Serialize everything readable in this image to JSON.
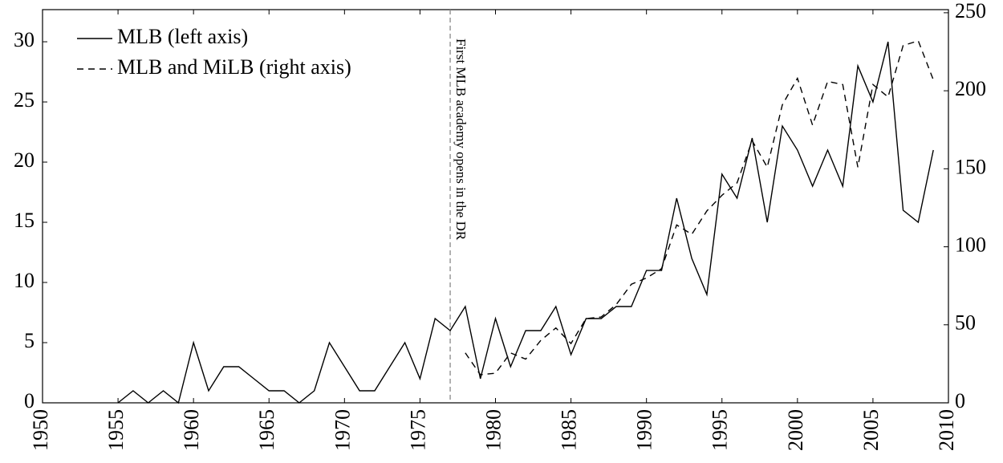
{
  "chart_data": {
    "type": "line",
    "x": [
      1955,
      1956,
      1957,
      1958,
      1959,
      1960,
      1961,
      1962,
      1963,
      1964,
      1965,
      1966,
      1967,
      1968,
      1969,
      1970,
      1971,
      1972,
      1973,
      1974,
      1975,
      1976,
      1977,
      1978,
      1979,
      1980,
      1981,
      1982,
      1983,
      1984,
      1985,
      1986,
      1987,
      1988,
      1989,
      1990,
      1991,
      1992,
      1993,
      1994,
      1995,
      1996,
      1997,
      1998,
      1999,
      2000,
      2001,
      2002,
      2003,
      2004,
      2005,
      2006,
      2007,
      2008,
      2009
    ],
    "series": [
      {
        "name": "MLB (left axis)",
        "color": "#000000",
        "dash": "none",
        "values": [
          0,
          1,
          0,
          1,
          0,
          5,
          1,
          3,
          3,
          2,
          1,
          1,
          0,
          1,
          5,
          3,
          1,
          1,
          3,
          5,
          2,
          7,
          6,
          8,
          2,
          7,
          3,
          6,
          6,
          8,
          4,
          7,
          7,
          8,
          8,
          11,
          11,
          17,
          12,
          9,
          19,
          17,
          22,
          15,
          23,
          21,
          18,
          21,
          18,
          28,
          25,
          30,
          16,
          15,
          21
        ]
      },
      {
        "name": "MLB and MiLB (right axis)",
        "color": "#000000",
        "dash": "8 6",
        "axis": "y2",
        "values": [
          null,
          null,
          null,
          null,
          null,
          null,
          null,
          null,
          null,
          null,
          null,
          null,
          null,
          null,
          null,
          null,
          null,
          null,
          null,
          null,
          null,
          null,
          null,
          32,
          18,
          19,
          32,
          28,
          40,
          48,
          38,
          54,
          55,
          63,
          76,
          80,
          86,
          114,
          108,
          123,
          133,
          141,
          168,
          151,
          191,
          208,
          178,
          206,
          204,
          151,
          204,
          196,
          229,
          232,
          207
        ]
      }
    ],
    "xlim": [
      1950,
      2010
    ],
    "xticks": [
      1950,
      1955,
      1960,
      1965,
      1970,
      1975,
      1980,
      1985,
      1990,
      1995,
      2000,
      2005,
      2010
    ],
    "ylim": [
      0,
      32.67
    ],
    "yticks": [
      0,
      5,
      10,
      15,
      20,
      25,
      30
    ],
    "y2lim": [
      0,
      252
    ],
    "y2ticks": [
      0,
      50,
      100,
      150,
      200,
      250
    ],
    "annotations": [
      {
        "text": "First MLB academy opens in the DR",
        "x": 1977,
        "color": "#888888"
      }
    ],
    "legend": "upper left"
  }
}
